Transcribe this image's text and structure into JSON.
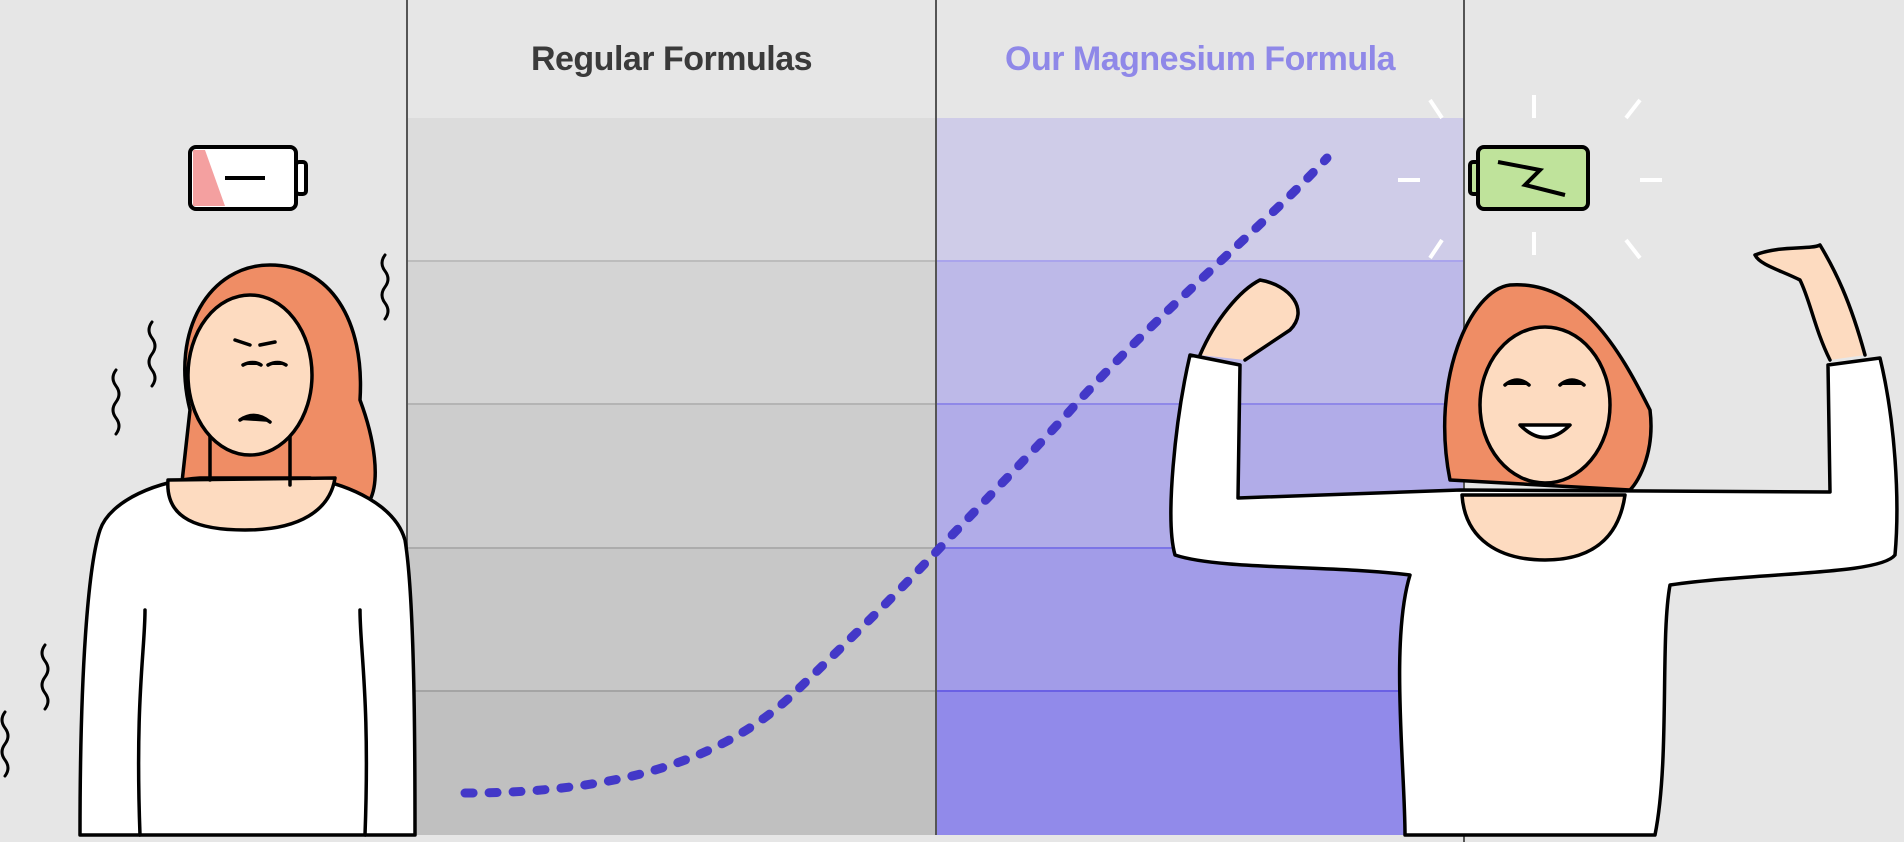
{
  "columns": {
    "regular": {
      "label": "Regular Formulas",
      "color": "#3a3a3a"
    },
    "magnesium": {
      "label": "Our Magnesium Formula",
      "color": "#8f88e8"
    }
  },
  "curve_color": "#4338c8",
  "left_figure": {
    "state": "tired",
    "battery": "low",
    "battery_color": "#f4a0a0"
  },
  "right_figure": {
    "state": "energized",
    "battery": "charged",
    "battery_color": "#bfe39b"
  },
  "bands": {
    "regular_colors": [
      "#dcdcdc",
      "#d4d4d4",
      "#cdcdcd",
      "#c7c7c7",
      "#c0c0c0"
    ],
    "magnesium_colors": [
      "#cfcce8",
      "#bdb9e8",
      "#b1ace8",
      "#a29ce8",
      "#918aea"
    ]
  }
}
